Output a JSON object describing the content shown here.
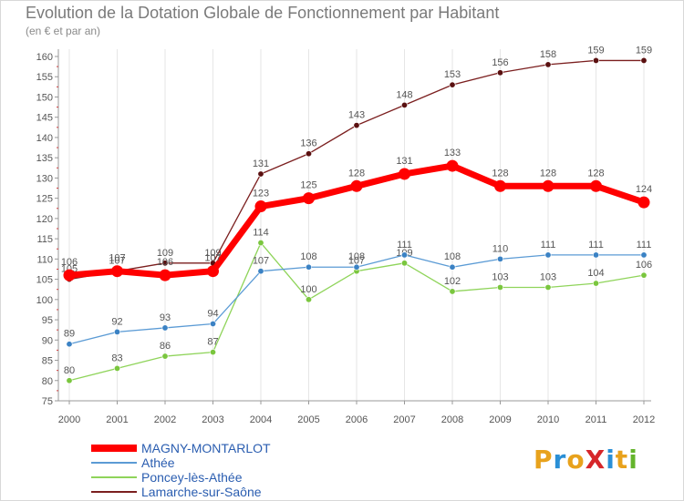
{
  "title": "Evolution de la Dotation Globale de Fonctionnement par Habitant",
  "subtitle": "(en € et par an)",
  "logo": {
    "text": "ProXiti",
    "colors": [
      "#e8a21c",
      "#2a8fd6",
      "#e8a21c",
      "#d6262a",
      "#2a8fd6",
      "#e8a21c",
      "#64b42c"
    ]
  },
  "chart_data": {
    "type": "line",
    "title": "Evolution de la Dotation Globale de Fonctionnement par Habitant",
    "ylabel": "(en € et par an)",
    "xlabel": "",
    "categories": [
      "2000",
      "2001",
      "2002",
      "2003",
      "2004",
      "2005",
      "2006",
      "2007",
      "2008",
      "2009",
      "2010",
      "2011",
      "2012"
    ],
    "ylim": [
      75,
      160
    ],
    "yticks": [
      75,
      80,
      85,
      90,
      95,
      100,
      105,
      110,
      115,
      120,
      125,
      130,
      135,
      140,
      145,
      150,
      155,
      160
    ],
    "grid": "vertical",
    "series": [
      {
        "name": "Lamarche-sur-Saône",
        "color": "#7b1f1f",
        "marker": "#5a1010",
        "style": "thin",
        "values": [
          105,
          107,
          109,
          109,
          131,
          136,
          143,
          148,
          153,
          156,
          158,
          159,
          159
        ]
      },
      {
        "name": "Poncey-lès-Athée",
        "color": "#8fd45a",
        "marker": "#7ac63e",
        "style": "thin",
        "values": [
          80,
          83,
          86,
          87,
          114,
          100,
          107,
          109,
          102,
          103,
          103,
          104,
          106
        ]
      },
      {
        "name": "Athée",
        "color": "#5b9bd5",
        "marker": "#3b82c4",
        "style": "thin",
        "values": [
          89,
          92,
          93,
          94,
          107,
          108,
          108,
          111,
          108,
          110,
          111,
          111,
          111
        ]
      },
      {
        "name": "MAGNY-MONTARLOT",
        "color": "#ff0000",
        "marker": "#ff0000",
        "style": "thick",
        "values": [
          106,
          107,
          106,
          107,
          123,
          125,
          128,
          131,
          133,
          128,
          128,
          128,
          124
        ]
      }
    ],
    "legend": [
      "MAGNY-MONTARLOT",
      "Athée",
      "Poncey-lès-Athée",
      "Lamarche-sur-Saône"
    ]
  }
}
